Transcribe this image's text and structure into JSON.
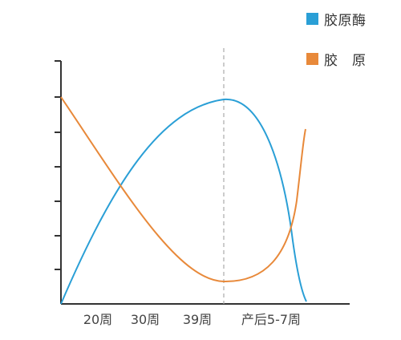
{
  "chart_data": {
    "type": "line",
    "categories": [
      "20周",
      "30周",
      "39周",
      "产后5-7周"
    ],
    "series": [
      {
        "name": "胶原酶",
        "color": "#2a9fd6"
      },
      {
        "name": "胶　原",
        "color": "#e8893a"
      }
    ],
    "reference_line": {
      "at": "39周",
      "style": "dashed"
    },
    "y_axis": {
      "ticks": 7,
      "tick_labels": false
    },
    "legend_position": "top-right"
  }
}
